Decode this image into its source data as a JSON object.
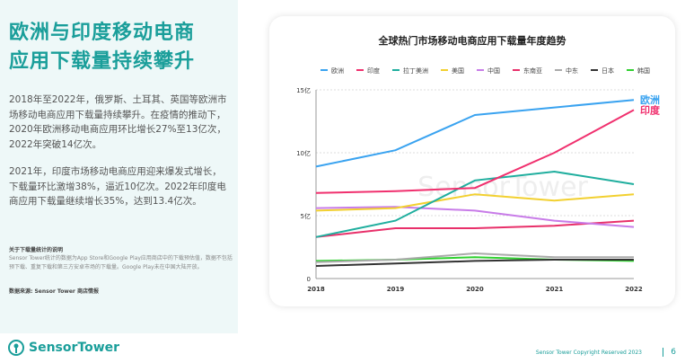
{
  "headline": {
    "line1": "欧洲与印度移动电商",
    "line2": "应用下载量持续攀升"
  },
  "paragraphs": [
    "2018年至2022年，俄罗斯、土耳其、英国等欧洲市场移动电商应用下载量持续攀升。在疫情的推动下，2020年欧洲移动电商应用环比增长27%至13亿次，2022年突破14亿次。",
    "2021年，印度市场移动电商应用迎来爆发式增长，下载量环比激增38%，逼近10亿次。2022年印度电商应用下载量继续增长35%，达到13.4亿次。"
  ],
  "note": {
    "title": "关于下载量统计的说明",
    "body": "Sensor Tower统计的数据为App Store和Google Play应用商店中的下载预估值，数据不包括预下载、重复下载和第三方安卓市场的下载量。Google Play未在中国大陆开放。",
    "source": "数据来源: Sensor Tower 商店情报"
  },
  "footer": {
    "brand": "SensorTower",
    "copyright": "Sensor Tower Copyright Reserved 2023",
    "page": "6"
  },
  "chart_data": {
    "type": "line",
    "title": "全球热门市场移动电商应用下载量年度趋势",
    "x": [
      "2018",
      "2019",
      "2020",
      "2021",
      "2022"
    ],
    "ylim": [
      0,
      15
    ],
    "yticks": [
      "0",
      "5亿",
      "10亿",
      "15亿"
    ],
    "legend": "top",
    "grid": true,
    "watermark": "SensorTower",
    "series": [
      {
        "name": "欧洲",
        "color": "#3aa3f0",
        "values": [
          8.9,
          10.2,
          13.0,
          13.6,
          14.2
        ],
        "end_label": "欧洲"
      },
      {
        "name": "印度",
        "color": "#f0306e",
        "values": [
          6.8,
          6.95,
          7.2,
          10.0,
          13.4
        ],
        "end_label": "印度"
      },
      {
        "name": "拉丁美洲",
        "color": "#1fae9e",
        "values": [
          3.3,
          4.6,
          7.8,
          8.5,
          7.5
        ]
      },
      {
        "name": "美国",
        "color": "#f2d030",
        "values": [
          5.4,
          5.6,
          6.7,
          6.2,
          6.7
        ]
      },
      {
        "name": "中国",
        "color": "#c87ce8",
        "values": [
          5.6,
          5.7,
          5.4,
          4.6,
          4.1
        ]
      },
      {
        "name": "东南亚",
        "color": "#e8306a",
        "values": [
          3.3,
          4.0,
          4.0,
          4.2,
          4.6
        ]
      },
      {
        "name": "中东",
        "color": "#aaaaaa",
        "values": [
          1.3,
          1.5,
          2.0,
          1.7,
          1.7
        ]
      },
      {
        "name": "日本",
        "color": "#333333",
        "values": [
          1.0,
          1.2,
          1.4,
          1.5,
          1.5
        ]
      },
      {
        "name": "韩国",
        "color": "#30d030",
        "values": [
          1.4,
          1.5,
          1.7,
          1.5,
          1.4
        ]
      }
    ]
  }
}
